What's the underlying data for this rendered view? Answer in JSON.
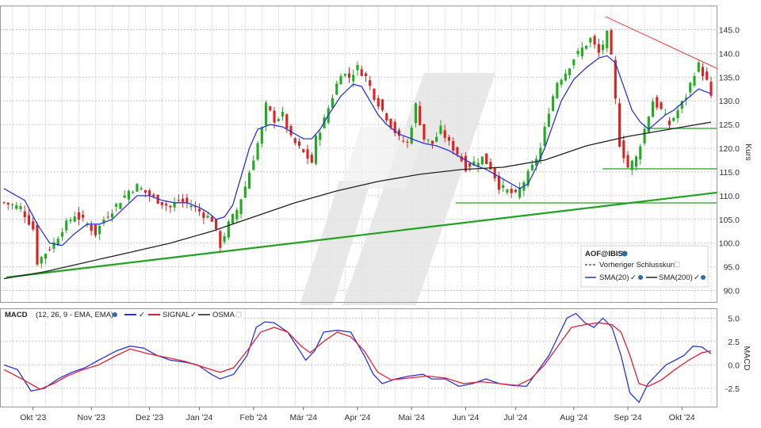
{
  "chart_data": [
    {
      "type": "candlestick",
      "yticks": [
        90,
        95,
        100,
        105,
        110,
        115,
        120,
        125,
        130,
        135,
        140,
        145
      ],
      "ytick_labels": [
        "90.0",
        "95.0",
        "100.0",
        "105.0",
        "110.0",
        "115.0",
        "120.0",
        "125.0",
        "130.0",
        "135.0",
        "140.0",
        "145.0"
      ],
      "ylim": [
        87.5,
        150
      ],
      "ylabel": "Kurs",
      "xtick_labels": [
        "Okt '23",
        "Nov '23",
        "Dez '23",
        "Jan '24",
        "Feb '24",
        "Mär '24",
        "Apr '24",
        "Mai '24",
        "Jun '24",
        "Jul '24",
        "Aug '24",
        "Sep '24",
        "Okt '24"
      ],
      "close_path": [
        [
          0,
          108.5
        ],
        [
          4,
          107.5
        ],
        [
          7,
          103
        ],
        [
          8,
          96
        ],
        [
          10,
          98
        ],
        [
          12,
          100
        ],
        [
          14,
          103
        ],
        [
          17,
          106
        ],
        [
          20,
          104
        ],
        [
          22,
          102
        ],
        [
          24,
          105
        ],
        [
          27,
          108
        ],
        [
          30,
          111
        ],
        [
          32,
          112
        ],
        [
          35,
          110
        ],
        [
          37,
          109
        ],
        [
          40,
          107.5
        ],
        [
          42,
          109
        ],
        [
          45,
          108
        ],
        [
          48,
          106
        ],
        [
          50,
          105
        ],
        [
          52,
          99.5
        ],
        [
          54,
          104
        ],
        [
          56,
          107
        ],
        [
          58,
          112
        ],
        [
          60,
          118
        ],
        [
          62,
          124
        ],
        [
          63,
          129
        ],
        [
          65,
          126
        ],
        [
          67,
          127
        ],
        [
          69,
          122
        ],
        [
          72,
          119
        ],
        [
          74,
          117
        ],
        [
          75,
          122
        ],
        [
          77,
          126
        ],
        [
          79,
          131
        ],
        [
          81,
          136
        ],
        [
          83,
          135
        ],
        [
          85,
          137
        ],
        [
          87,
          135
        ],
        [
          89,
          131
        ],
        [
          91,
          128
        ],
        [
          93,
          125
        ],
        [
          95,
          122
        ],
        [
          97,
          121
        ],
        [
          99,
          129
        ],
        [
          101,
          122
        ],
        [
          103,
          121
        ],
        [
          105,
          124
        ],
        [
          107,
          121
        ],
        [
          109,
          119
        ],
        [
          111,
          116
        ],
        [
          113,
          117
        ],
        [
          115,
          118
        ],
        [
          117,
          116
        ],
        [
          119,
          112
        ],
        [
          121,
          111
        ],
        [
          123,
          110
        ],
        [
          125,
          113
        ],
        [
          127,
          116
        ],
        [
          129,
          120
        ],
        [
          131,
          128
        ],
        [
          133,
          134
        ],
        [
          135,
          136
        ],
        [
          137,
          139
        ],
        [
          139,
          141
        ],
        [
          141,
          143
        ],
        [
          143,
          140
        ],
        [
          145,
          144
        ],
        [
          146,
          139
        ],
        [
          148,
          121
        ],
        [
          150,
          116
        ],
        [
          152,
          118
        ],
        [
          154,
          124
        ],
        [
          156,
          130
        ],
        [
          158,
          128
        ],
        [
          160,
          125
        ],
        [
          162,
          128
        ],
        [
          164,
          131
        ],
        [
          166,
          136
        ],
        [
          167,
          137.5
        ],
        [
          169,
          134
        ],
        [
          170,
          130.5
        ]
      ],
      "series": [
        {
          "name": "SMA(20)",
          "color": "#2a35d4",
          "points": [
            [
              0,
              111.5
            ],
            [
              5,
              109
            ],
            [
              8,
              104
            ],
            [
              11,
              100
            ],
            [
              14,
              99.5
            ],
            [
              17,
              102
            ],
            [
              20,
              104
            ],
            [
              23,
              104
            ],
            [
              26,
              105
            ],
            [
              29,
              107.5
            ],
            [
              32,
              110
            ],
            [
              35,
              110
            ],
            [
              38,
              109
            ],
            [
              41,
              108.5
            ],
            [
              44,
              108.5
            ],
            [
              47,
              107.5
            ],
            [
              49,
              106.5
            ],
            [
              51,
              105
            ],
            [
              53,
              105.5
            ],
            [
              55,
              108
            ],
            [
              57,
              114
            ],
            [
              59,
              120
            ],
            [
              61,
              124
            ],
            [
              64,
              125
            ],
            [
              67,
              124.5
            ],
            [
              70,
              123
            ],
            [
              72,
              122
            ],
            [
              74,
              122
            ],
            [
              76,
              124
            ],
            [
              78,
              127
            ],
            [
              81,
              131
            ],
            [
              84,
              133.5
            ],
            [
              86,
              133
            ],
            [
              88,
              130
            ],
            [
              90,
              127
            ],
            [
              92,
              125
            ],
            [
              95,
              123
            ],
            [
              98,
              122
            ],
            [
              101,
              121
            ],
            [
              104,
              120.5
            ],
            [
              107,
              119.5
            ],
            [
              110,
              118
            ],
            [
              113,
              116.5
            ],
            [
              116,
              115.5
            ],
            [
              119,
              114
            ],
            [
              122,
              112.5
            ],
            [
              124,
              111.5
            ],
            [
              126,
              112.5
            ],
            [
              128,
              116
            ],
            [
              130,
              120
            ],
            [
              132,
              125
            ],
            [
              134,
              130
            ],
            [
              137,
              134.5
            ],
            [
              140,
              137
            ],
            [
              143,
              139
            ],
            [
              145,
              139.5
            ],
            [
              147,
              138
            ],
            [
              149,
              133
            ],
            [
              151,
              128
            ],
            [
              153,
              125.5
            ],
            [
              155,
              124
            ],
            [
              157,
              125.5
            ],
            [
              159,
              127
            ],
            [
              161,
              128
            ],
            [
              163,
              129.5
            ],
            [
              165,
              131
            ],
            [
              167,
              132.5
            ],
            [
              170,
              131.5
            ]
          ]
        },
        {
          "name": "SMA(200)",
          "color": "#222222",
          "points": [
            [
              0,
              92.5
            ],
            [
              10,
              94
            ],
            [
              20,
              96
            ],
            [
              30,
              98
            ],
            [
              40,
              100
            ],
            [
              50,
              102.5
            ],
            [
              60,
              105.5
            ],
            [
              70,
              108.5
            ],
            [
              80,
              111
            ],
            [
              90,
              113
            ],
            [
              100,
              114.5
            ],
            [
              110,
              115.5
            ],
            [
              120,
              116
            ],
            [
              130,
              117.5
            ],
            [
              140,
              120.5
            ],
            [
              150,
              122.5
            ],
            [
              160,
              124
            ],
            [
              170,
              125.5
            ]
          ]
        }
      ]
    },
    {
      "type": "line",
      "ylabel": "MACD",
      "yticks": [
        -2.5,
        0,
        2.5,
        5
      ],
      "ytick_labels": [
        "-2.5",
        "0.0",
        "2.5",
        "5.0"
      ],
      "ylim": [
        -4.5,
        6
      ],
      "series": [
        {
          "name": "MACD",
          "color": "#2a35d4",
          "points": [
            [
              0,
              0
            ],
            [
              3,
              -0.5
            ],
            [
              6,
              -2.8
            ],
            [
              9,
              -2.5
            ],
            [
              12,
              -1.5
            ],
            [
              15,
              -0.8
            ],
            [
              18,
              -0.3
            ],
            [
              21,
              0.5
            ],
            [
              25,
              1.5
            ],
            [
              28,
              2
            ],
            [
              31,
              1.8
            ],
            [
              34,
              1
            ],
            [
              37,
              0.5
            ],
            [
              40,
              0.3
            ],
            [
              43,
              0
            ],
            [
              46,
              -1
            ],
            [
              48,
              -1.5
            ],
            [
              51,
              -1
            ],
            [
              54,
              1
            ],
            [
              56,
              4
            ],
            [
              58,
              4.6
            ],
            [
              60,
              4.5
            ],
            [
              63,
              3.5
            ],
            [
              65,
              2
            ],
            [
              67,
              0.5
            ],
            [
              69,
              1.5
            ],
            [
              71,
              3.5
            ],
            [
              74,
              3.7
            ],
            [
              77,
              3.5
            ],
            [
              80,
              1
            ],
            [
              82,
              -1
            ],
            [
              84,
              -2
            ],
            [
              87,
              -1.5
            ],
            [
              90,
              -1.2
            ],
            [
              93,
              -1
            ],
            [
              95,
              -1.5
            ],
            [
              98,
              -1.5
            ],
            [
              101,
              -2.3
            ],
            [
              104,
              -2
            ],
            [
              107,
              -1.5
            ],
            [
              110,
              -2
            ],
            [
              113,
              -2.2
            ],
            [
              116,
              -2.3
            ],
            [
              118,
              -1
            ],
            [
              121,
              1
            ],
            [
              123,
              3
            ],
            [
              125,
              5
            ],
            [
              127,
              5.5
            ],
            [
              129,
              4.5
            ],
            [
              131,
              4
            ],
            [
              133,
              5
            ],
            [
              135,
              4
            ],
            [
              137,
              1
            ],
            [
              139,
              -3
            ],
            [
              141,
              -4
            ],
            [
              143,
              -2
            ],
            [
              145,
              -1
            ],
            [
              147,
              0
            ],
            [
              149,
              0.5
            ],
            [
              151,
              1
            ],
            [
              153,
              2
            ],
            [
              155,
              1.9
            ],
            [
              157,
              1.2
            ]
          ]
        },
        {
          "name": "SIGNAL",
          "color": "#e0203a",
          "points": [
            [
              0,
              -0.5
            ],
            [
              4,
              -1.5
            ],
            [
              8,
              -2.6
            ],
            [
              11,
              -2
            ],
            [
              14,
              -1.2
            ],
            [
              17,
              -0.6
            ],
            [
              21,
              0
            ],
            [
              25,
              1
            ],
            [
              28,
              1.7
            ],
            [
              32,
              1.2
            ],
            [
              36,
              0.8
            ],
            [
              40,
              0.4
            ],
            [
              44,
              -0.2
            ],
            [
              48,
              -0.8
            ],
            [
              51,
              -0.3
            ],
            [
              54,
              1.5
            ],
            [
              57,
              3.5
            ],
            [
              60,
              4
            ],
            [
              63,
              3.5
            ],
            [
              66,
              2
            ],
            [
              68,
              1.3
            ],
            [
              71,
              2.5
            ],
            [
              74,
              3.5
            ],
            [
              77,
              3
            ],
            [
              80,
              1.5
            ],
            [
              83,
              -0.8
            ],
            [
              86,
              -1.6
            ],
            [
              90,
              -1.4
            ],
            [
              94,
              -1.2
            ],
            [
              98,
              -1.4
            ],
            [
              102,
              -2
            ],
            [
              106,
              -1.8
            ],
            [
              110,
              -2
            ],
            [
              114,
              -2.2
            ],
            [
              117,
              -1.5
            ],
            [
              120,
              0
            ],
            [
              123,
              2
            ],
            [
              126,
              4
            ],
            [
              129,
              4.3
            ],
            [
              132,
              4.5
            ],
            [
              135,
              4.3
            ],
            [
              137,
              3.5
            ],
            [
              139,
              1
            ],
            [
              141,
              -2
            ],
            [
              143,
              -2.3
            ],
            [
              146,
              -1.6
            ],
            [
              149,
              -0.5
            ],
            [
              152,
              0.5
            ],
            [
              155,
              1.3
            ],
            [
              157,
              1.5
            ]
          ]
        }
      ]
    }
  ],
  "legend": {
    "price": {
      "symbol": "AOF@IBIS",
      "items": [
        {
          "label": "Vorheriger Schlusskurs",
          "color": "#555555"
        },
        {
          "label": "SMA(20)",
          "color": "#2a35d4"
        },
        {
          "label": "SMA(200)",
          "color": "#222222"
        }
      ]
    },
    "macd": {
      "title": "MACD",
      "params": "(12, 26, 9 - EMA, EMA)",
      "items": [
        {
          "label": "SIGNAL",
          "color": "#e0203a"
        },
        {
          "label": "OSMA",
          "color": "#555555"
        }
      ]
    }
  },
  "colors": {
    "up_candle": "#22aa22",
    "down_candle": "#dd2222",
    "trend_support": "#22a122",
    "trend_resistance": "#ee5555",
    "horizontal_level": "#22a122",
    "watermark": "#e4e4e4",
    "grid": "#bbbbbb"
  }
}
